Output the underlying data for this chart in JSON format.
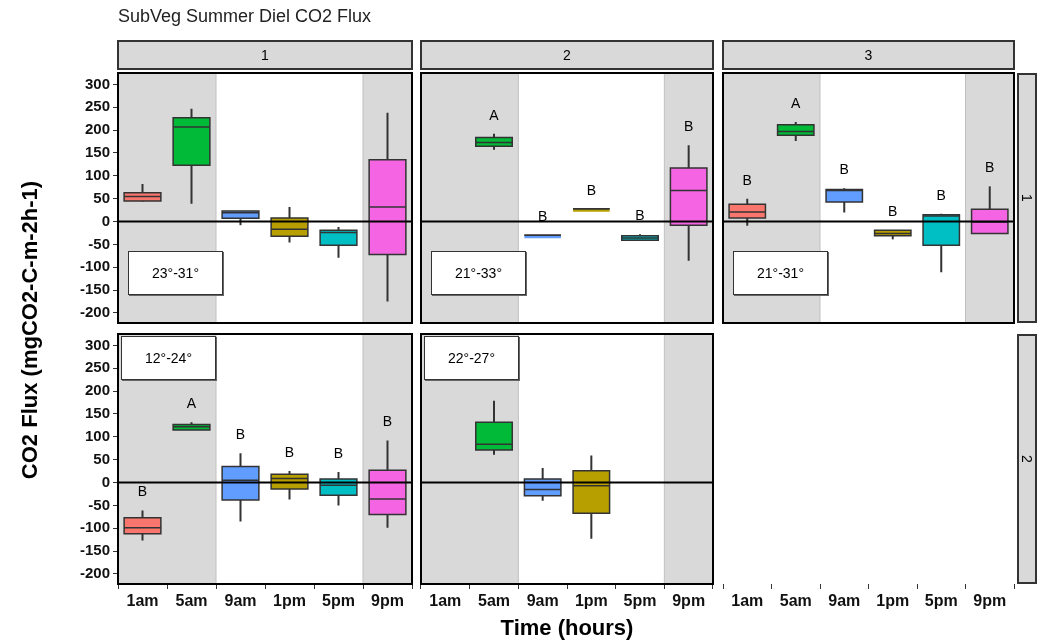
{
  "chart_data": [
    {
      "type": "box",
      "title": "1",
      "subtitle": "SubVeg Summer Diel CO2 Flux",
      "ylabel": "CO2 Flux (mgCO2-C-m-2h-1)",
      "categories": [
        "1am",
        "5am",
        "9am",
        "1pm",
        "5pm",
        "9pm"
      ],
      "colors": [
        "#f8766d",
        "#00ba38",
        "#619cff",
        "#b79f00",
        "#00bfc4",
        "#f564e3"
      ],
      "boxes": [
        {
          "low": 44,
          "q1": 45,
          "median": 55,
          "q3": 63,
          "high": 82
        },
        {
          "low": 39,
          "q1": 123,
          "median": 207,
          "q3": 227,
          "high": 247
        },
        {
          "low": -8,
          "q1": 7,
          "median": 19,
          "q3": 23,
          "high": 23
        },
        {
          "low": -46,
          "q1": -32,
          "median": -17,
          "q3": 8,
          "high": 32
        },
        {
          "low": -79,
          "q1": -52,
          "median": -24,
          "q3": -19,
          "high": -12
        },
        {
          "low": -175,
          "q1": -72,
          "median": 32,
          "q3": 135,
          "high": 238
        }
      ],
      "ylim": [
        -222,
        325
      ],
      "yticks": [
        -200,
        -150,
        -100,
        -50,
        0,
        50,
        100,
        150,
        200,
        250,
        300
      ],
      "tick_labels": "y",
      "bands": [
        {
          "axis": "x",
          "from": "1am",
          "to": "5am",
          "color": "#d9d9d9"
        },
        {
          "axis": "x",
          "from": "9pm",
          "to": "9pm",
          "color": "#d9d9d9"
        }
      ],
      "ref_lines": [
        {
          "axis": "y",
          "value": 0,
          "color": "#000000"
        }
      ],
      "annotations": [
        "23°-31°"
      ]
    },
    {
      "type": "box",
      "title": "2",
      "categories": [
        "1am",
        "5am",
        "9am",
        "1pm",
        "5pm",
        "9pm"
      ],
      "colors": [
        "#f8766d",
        "#00ba38",
        "#619cff",
        "#b79f00",
        "#00bfc4",
        "#f564e3"
      ],
      "boxes": [
        null,
        {
          "low": 157,
          "q1": 165,
          "median": 173,
          "q3": 184,
          "high": 192
        },
        {
          "low": -30,
          "q1": -30,
          "median": -30,
          "q3": -30,
          "high": -30
        },
        {
          "low": 28,
          "q1": 28,
          "median": 28,
          "q3": 28,
          "high": 28
        },
        {
          "low": -41,
          "q1": -41,
          "median": -36,
          "q3": -31,
          "high": -28
        },
        {
          "low": -86,
          "q1": -8,
          "median": 68,
          "q3": 117,
          "high": 167
        }
      ],
      "ylim": [
        -222,
        325
      ],
      "yticks": [
        -200,
        -150,
        -100,
        -50,
        0,
        50,
        100,
        150,
        200,
        250,
        300
      ],
      "tick_labels": false,
      "bands": [
        {
          "axis": "x",
          "from": "1am",
          "to": "5am",
          "color": "#d9d9d9"
        },
        {
          "axis": "x",
          "from": "9pm",
          "to": "9pm",
          "color": "#d9d9d9"
        }
      ],
      "ref_lines": [
        {
          "axis": "y",
          "value": 0,
          "color": "#000000"
        }
      ],
      "annotations": [
        "21°-33°",
        {
          "text": "A",
          "x": "5am",
          "y": 192
        },
        {
          "text": "B",
          "x": "9am",
          "y": -30
        },
        {
          "text": "B",
          "x": "1pm",
          "y": 28
        },
        {
          "text": "B",
          "x": "5pm",
          "y": -28
        },
        {
          "text": "B",
          "x": "9pm",
          "y": 167
        }
      ]
    },
    {
      "type": "box",
      "title": "3",
      "y2label": "1",
      "categories": [
        "1am",
        "5am",
        "9am",
        "1pm",
        "5pm",
        "9pm"
      ],
      "colors": [
        "#f8766d",
        "#00ba38",
        "#619cff",
        "#b79f00",
        "#00bfc4",
        "#f564e3"
      ],
      "boxes": [
        {
          "low": -9,
          "q1": 8,
          "median": 21,
          "q3": 38,
          "high": 50
        },
        {
          "low": 176,
          "q1": 189,
          "median": 197,
          "q3": 212,
          "high": 218
        },
        {
          "low": 20,
          "q1": 43,
          "median": 68,
          "q3": 70,
          "high": 73
        },
        {
          "low": -39,
          "q1": -31,
          "median": -26,
          "q3": -19,
          "high": -19
        },
        {
          "low": -111,
          "q1": -52,
          "median": 12,
          "q3": 15,
          "high": 17
        },
        {
          "low": -26,
          "q1": -26,
          "median": -1,
          "q3": 27,
          "high": 77
        }
      ],
      "ylim": [
        -222,
        325
      ],
      "yticks": [
        -200,
        -150,
        -100,
        -50,
        0,
        50,
        100,
        150,
        200,
        250,
        300
      ],
      "tick_labels": false,
      "bands": [
        {
          "axis": "x",
          "from": "1am",
          "to": "5am",
          "color": "#d9d9d9"
        },
        {
          "axis": "x",
          "from": "9pm",
          "to": "9pm",
          "color": "#d9d9d9"
        }
      ],
      "ref_lines": [
        {
          "axis": "y",
          "value": 0,
          "color": "#000000"
        }
      ],
      "annotations": [
        "21°-31°",
        {
          "text": "B",
          "x": "1am",
          "y": 50
        },
        {
          "text": "A",
          "x": "5am",
          "y": 218
        },
        {
          "text": "B",
          "x": "9am",
          "y": 73
        },
        {
          "text": "B",
          "x": "1pm",
          "y": -19
        },
        {
          "text": "B",
          "x": "5pm",
          "y": 17
        },
        {
          "text": "B",
          "x": "9pm",
          "y": 77
        }
      ]
    },
    {
      "type": "box",
      "categories": [
        "1am",
        "5am",
        "9am",
        "1pm",
        "5pm",
        "9pm"
      ],
      "colors": [
        "#f8766d",
        "#00ba38",
        "#619cff",
        "#b79f00",
        "#00bfc4",
        "#f564e3"
      ],
      "boxes": [
        {
          "low": -127,
          "q1": -112,
          "median": -99,
          "q3": -77,
          "high": -61
        },
        {
          "low": 115,
          "q1": 115,
          "median": 122,
          "q3": 127,
          "high": 132
        },
        {
          "low": -85,
          "q1": -38,
          "median": 5,
          "q3": 35,
          "high": 64
        },
        {
          "low": -37,
          "q1": -14,
          "median": 9,
          "q3": 18,
          "high": 25
        },
        {
          "low": -50,
          "q1": -28,
          "median": -6,
          "q3": 8,
          "high": 23
        },
        {
          "low": -99,
          "q1": -70,
          "median": -36,
          "q3": 27,
          "high": 92
        }
      ],
      "ylim": [
        -222,
        325
      ],
      "yticks": [
        -200,
        -150,
        -100,
        -50,
        0,
        50,
        100,
        150,
        200,
        250,
        300
      ],
      "bands": [
        {
          "axis": "x",
          "from": "1am",
          "to": "5am",
          "color": "#d9d9d9"
        },
        {
          "axis": "x",
          "from": "9pm",
          "to": "9pm",
          "color": "#d9d9d9"
        }
      ],
      "ref_lines": [
        {
          "axis": "y",
          "value": 0,
          "color": "#000000"
        }
      ],
      "annotations": [
        "12°-24°",
        {
          "text": "B",
          "x": "1am",
          "y": -61
        },
        {
          "text": "A",
          "x": "5am",
          "y": 132
        },
        {
          "text": "B",
          "x": "9am",
          "y": 64
        },
        {
          "text": "B",
          "x": "1pm",
          "y": 25
        },
        {
          "text": "B",
          "x": "5pm",
          "y": 23
        },
        {
          "text": "B",
          "x": "9pm",
          "y": 92
        }
      ]
    },
    {
      "type": "box",
      "xlabel": "Time (hours)",
      "categories": [
        "1am",
        "5am",
        "9am",
        "1pm",
        "5pm",
        "9pm"
      ],
      "colors": [
        "#f8766d",
        "#00ba38",
        "#619cff",
        "#b79f00",
        "#00bfc4",
        "#f564e3"
      ],
      "boxes": [
        null,
        {
          "low": 61,
          "q1": 71,
          "median": 84,
          "q3": 132,
          "high": 179
        },
        {
          "low": -40,
          "q1": -29,
          "median": -15,
          "q3": 8,
          "high": 32
        },
        {
          "low": -123,
          "q1": -67,
          "median": -7,
          "q3": 26,
          "high": 59
        },
        null,
        null
      ],
      "ylim": [
        -222,
        325
      ],
      "yticks": [
        -200,
        -150,
        -100,
        -50,
        0,
        50,
        100,
        150,
        200,
        250,
        300
      ],
      "tick_labels": "x",
      "bands": [
        {
          "axis": "x",
          "from": "1am",
          "to": "5am",
          "color": "#d9d9d9"
        },
        {
          "axis": "x",
          "from": "9pm",
          "to": "9pm",
          "color": "#d9d9d9"
        }
      ],
      "ref_lines": [
        {
          "axis": "y",
          "value": 0,
          "color": "#000000"
        }
      ],
      "annotations": [
        "22°-27°"
      ]
    },
    {
      "type": "other",
      "y2label": "2",
      "categories": [
        "1am",
        "5am",
        "9am",
        "1pm",
        "5pm",
        "9pm"
      ]
    }
  ]
}
